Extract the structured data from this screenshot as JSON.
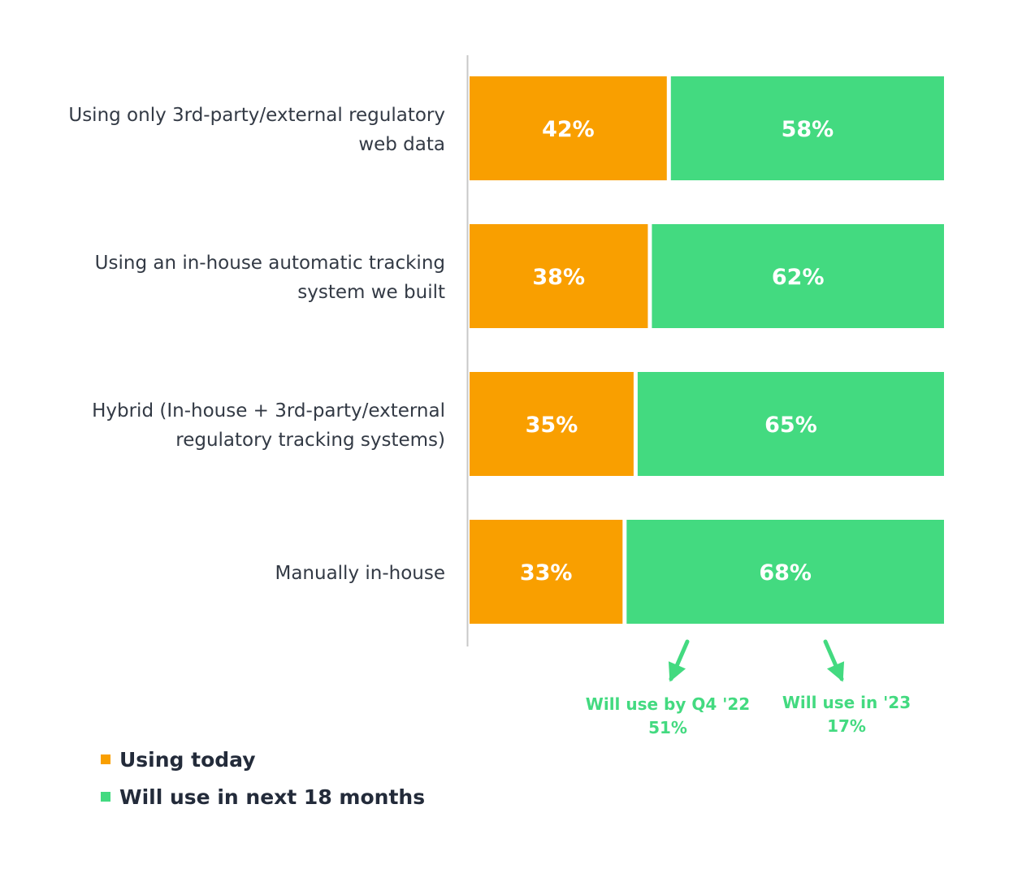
{
  "chart_data": {
    "type": "bar",
    "orientation": "horizontal",
    "stacked": true,
    "percent_stacked": true,
    "categories": [
      "Using only 3rd-party/external regulatory web data",
      "Using an in-house automatic tracking system we built",
      "Hybrid (In-house + 3rd-party/external regulatory tracking systems)",
      "Manually in-house"
    ],
    "series": [
      {
        "name": "Using today",
        "values": [
          42,
          38,
          35,
          33
        ],
        "labels": [
          "42%",
          "38%",
          "35%",
          "33%"
        ]
      },
      {
        "name": "Will use in next 18 months",
        "values": [
          58,
          62,
          65,
          68
        ],
        "labels": [
          "58%",
          "62%",
          "65%",
          "68%"
        ]
      }
    ],
    "xlim": [
      0,
      100
    ],
    "grid": false,
    "legend_position": "bottom-left",
    "annotations": [
      {
        "label": "Will use by Q4 '22",
        "value": "51%",
        "target_series": "Will use in next 18 months"
      },
      {
        "label": "Will use in '23",
        "value": "17%",
        "target_series": "Will use in next 18 months"
      }
    ],
    "colors": {
      "Using today": "#f99f00",
      "Will use in next 18 months": "#43da80"
    },
    "axis_color": "#c8c8c8",
    "label_color": "#ffffff",
    "annotation_color": "#43da80"
  },
  "legend": {
    "items": [
      {
        "label": "Using today",
        "color": "#f99f00"
      },
      {
        "label": "Will use in next 18 months",
        "color": "#43da80"
      }
    ]
  },
  "category_label_lines": [
    [
      "Using only 3rd-party/external regulatory",
      "web data"
    ],
    [
      "Using an in-house automatic tracking",
      "system we built"
    ],
    [
      "Hybrid (In-house + 3rd-party/external",
      "regulatory tracking systems)"
    ],
    [
      "Manually in-house"
    ]
  ]
}
